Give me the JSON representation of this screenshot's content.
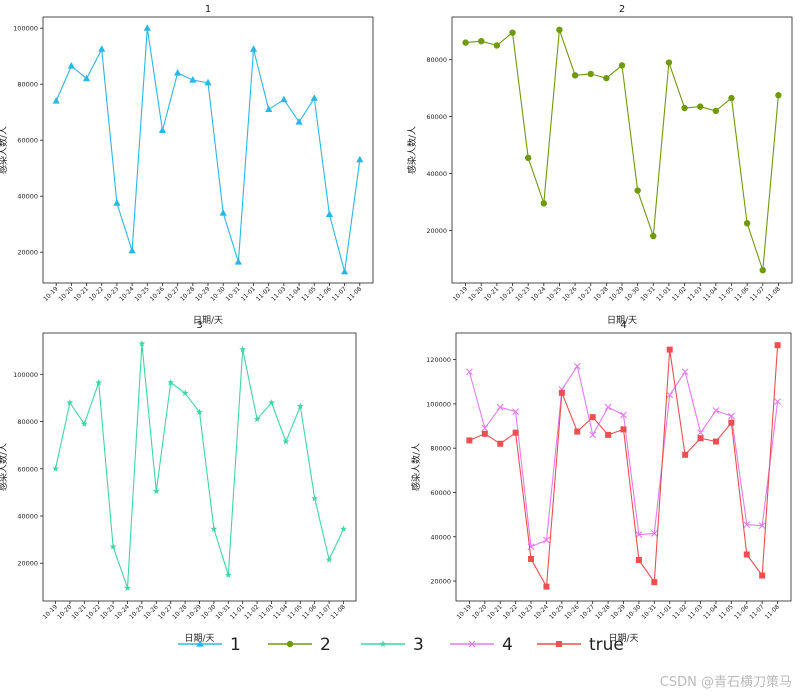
{
  "colors": {
    "s1": "#2bb7e6",
    "s2": "#6e9a0c",
    "s3": "#3fd6a6",
    "s4": "#e57bef",
    "true": "#ec4f4f"
  },
  "watermark": "CSDN @青石横刀策马",
  "chart_data": [
    {
      "type": "line",
      "title": "1",
      "xlabel": "日期/天",
      "ylabel": "感染人数/人",
      "categories": [
        "10-19",
        "10-20",
        "10-21",
        "10-22",
        "10-23",
        "10-24",
        "10-25",
        "10-26",
        "10-27",
        "10-28",
        "10-29",
        "10-30",
        "10-31",
        "11-01",
        "11-02",
        "11-03",
        "11-04",
        "11-05",
        "11-06",
        "11-07",
        "11-08"
      ],
      "yticks": [
        20000,
        40000,
        60000,
        80000,
        100000
      ],
      "ylim": [
        9000,
        104000
      ],
      "series": [
        {
          "name": "1",
          "color": "#2bb7e6",
          "marker": "triangle",
          "values": [
            74000,
            86500,
            82000,
            92500,
            37500,
            20500,
            100000,
            63500,
            84000,
            81500,
            80500,
            34000,
            16500,
            92500,
            71000,
            74500,
            66500,
            75000,
            33500,
            13000,
            53000
          ]
        }
      ]
    },
    {
      "type": "line",
      "title": "2",
      "xlabel": "日期/天",
      "ylabel": "感染人数/人",
      "categories": [
        "10-19",
        "10-20",
        "10-21",
        "10-22",
        "10-23",
        "10-24",
        "10-25",
        "10-26",
        "10-27",
        "10-28",
        "10-29",
        "10-30",
        "10-31",
        "11-01",
        "11-02",
        "11-03",
        "11-04",
        "11-05",
        "11-06",
        "11-07",
        "11-08"
      ],
      "yticks": [
        20000,
        40000,
        60000,
        80000
      ],
      "ylim": [
        1500,
        95000
      ],
      "series": [
        {
          "name": "2",
          "color": "#6e9a0c",
          "marker": "circle",
          "values": [
            86000,
            86500,
            85000,
            89500,
            45500,
            29500,
            90500,
            74500,
            75000,
            73500,
            78000,
            34000,
            18000,
            79000,
            63000,
            63500,
            62000,
            66500,
            22500,
            6000,
            67500
          ]
        }
      ]
    },
    {
      "type": "line",
      "title": "3",
      "xlabel": "日期/天",
      "ylabel": "感染人数/人",
      "categories": [
        "10-19",
        "10-20",
        "10-21",
        "10-22",
        "10-23",
        "10-24",
        "10-25",
        "10-26",
        "10-27",
        "10-28",
        "10-29",
        "10-30",
        "10-31",
        "11-01",
        "11-02",
        "11-03",
        "11-04",
        "11-05",
        "11-06",
        "11-07",
        "11-08"
      ],
      "yticks": [
        20000,
        40000,
        60000,
        80000,
        100000
      ],
      "ylim": [
        4000,
        117500
      ],
      "series": [
        {
          "name": "3",
          "color": "#3fd6a6",
          "marker": "star",
          "values": [
            60000,
            88000,
            79000,
            96500,
            27000,
            9500,
            113000,
            50500,
            96500,
            92000,
            84000,
            34500,
            15000,
            110500,
            81000,
            88000,
            71500,
            86500,
            47500,
            21500,
            34500
          ]
        }
      ]
    },
    {
      "type": "line",
      "title": "4",
      "xlabel": "日期/天",
      "ylabel": "感染人数/人",
      "categories": [
        "10-19",
        "10-20",
        "10-21",
        "10-22",
        "10-23",
        "10-24",
        "10-25",
        "10-26",
        "10-27",
        "10-28",
        "10-29",
        "10-30",
        "10-31",
        "11-01",
        "11-02",
        "11-03",
        "11-04",
        "11-05",
        "11-06",
        "11-07",
        "11-08"
      ],
      "yticks": [
        20000,
        40000,
        60000,
        80000,
        100000,
        120000
      ],
      "ylim": [
        11000,
        132000
      ],
      "series": [
        {
          "name": "4",
          "color": "#e57bef",
          "marker": "x",
          "values": [
            114500,
            89000,
            98500,
            96500,
            35500,
            38500,
            106500,
            117000,
            86000,
            98500,
            95000,
            41000,
            41500,
            104000,
            114500,
            87000,
            97000,
            94500,
            45500,
            45000,
            101000
          ]
        },
        {
          "name": "true",
          "color": "#ec4f4f",
          "marker": "square",
          "values": [
            83500,
            86500,
            82000,
            87000,
            30000,
            17500,
            105000,
            87500,
            94000,
            86000,
            88500,
            29500,
            19500,
            124500,
            77000,
            84500,
            83000,
            91500,
            32000,
            22500,
            126500
          ]
        }
      ]
    }
  ],
  "legend": {
    "placement": "bottom-center",
    "entries": [
      {
        "label": "1",
        "color": "#2bb7e6",
        "marker": "triangle"
      },
      {
        "label": "2",
        "color": "#6e9a0c",
        "marker": "circle"
      },
      {
        "label": "3",
        "color": "#3fd6a6",
        "marker": "star"
      },
      {
        "label": "4",
        "color": "#e57bef",
        "marker": "x"
      },
      {
        "label": "true",
        "color": "#ec4f4f",
        "marker": "square"
      }
    ]
  }
}
